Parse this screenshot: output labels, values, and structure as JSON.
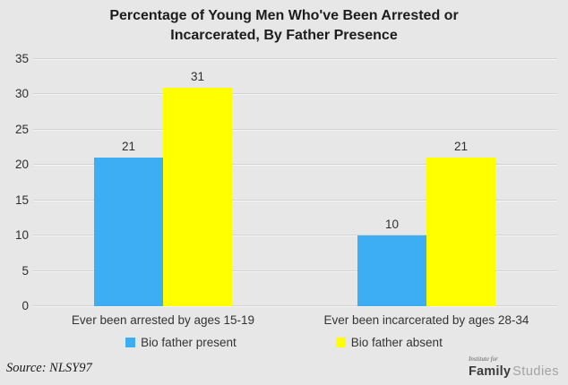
{
  "title": "Percentage of Young Men Who've Been Arrested or Incarcerated, By Father Presence",
  "chart_data": {
    "type": "bar",
    "title": "Percentage of Young Men Who've Been Arrested or Incarcerated, By Father Presence",
    "categories": [
      "Ever been arrested by ages 15-19",
      "Ever been incarcerated by ages 28-34"
    ],
    "series": [
      {
        "name": "Bio father present",
        "color": "#3daef3",
        "values": [
          21,
          10
        ]
      },
      {
        "name": "Bio father absent",
        "color": "#ffff00",
        "values": [
          31,
          21
        ]
      }
    ],
    "xlabel": "",
    "ylabel": "",
    "ylim": [
      0,
      35
    ],
    "yticks": [
      0,
      5,
      10,
      15,
      20,
      25,
      30,
      35
    ],
    "grid": true,
    "legend_position": "bottom",
    "data_labels": true
  },
  "footer": {
    "source": "Source: NLSY97",
    "logo": {
      "top": "Institute for",
      "bold": "Family",
      "light": "Studies"
    }
  },
  "colors": {
    "background": "#e7e7e7",
    "gridline": "#d3d3d3",
    "text": "#2e2e2e",
    "series_present": "#3daef3",
    "series_absent": "#ffff00"
  }
}
